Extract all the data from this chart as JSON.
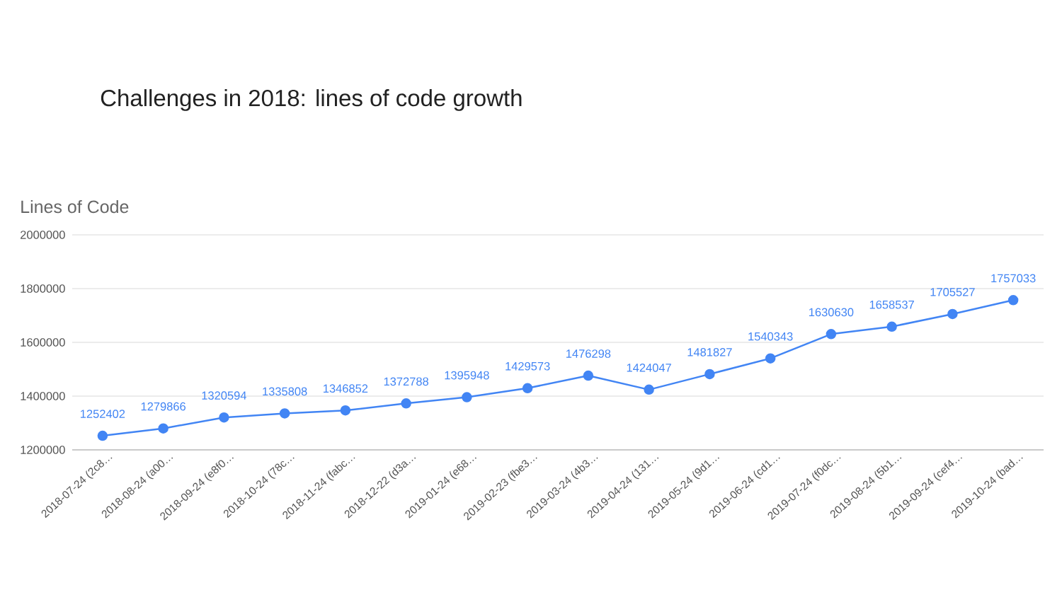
{
  "chart_data": {
    "type": "line",
    "title": "Challenges in 2018: lines of code growth",
    "ylabel": "Lines of Code",
    "categories": [
      "2018-07-24 (2c8…",
      "2018-08-24 (a00…",
      "2018-09-24 (e8f0…",
      "2018-10-24 (78c…",
      "2018-11-24 (fabc…",
      "2018-12-22 (d3a…",
      "2019-01-24 (e68…",
      "2019-02-23 (fbe3…",
      "2019-03-24 (4b3…",
      "2019-04-24 (131…",
      "2019-05-24 (9d1…",
      "2019-06-24 (cd1…",
      "2019-07-24 (f0dc…",
      "2019-08-24 (5b1…",
      "2019-09-24 (cef4…",
      "2019-10-24 (bad…"
    ],
    "series": [
      {
        "color": "#4285f4",
        "values": [
          1252402,
          1279866,
          1320594,
          1335808,
          1346852,
          1372788,
          1395948,
          1429573,
          1476298,
          1424047,
          1481827,
          1540343,
          1630630,
          1658537,
          1705527,
          1757033
        ]
      }
    ],
    "ylim": [
      1200000,
      2000000
    ],
    "yticks": [
      1200000,
      1400000,
      1600000,
      1800000,
      2000000
    ],
    "grid": "y",
    "marker": "circle",
    "line_style": "solid",
    "data_labels": true
  }
}
